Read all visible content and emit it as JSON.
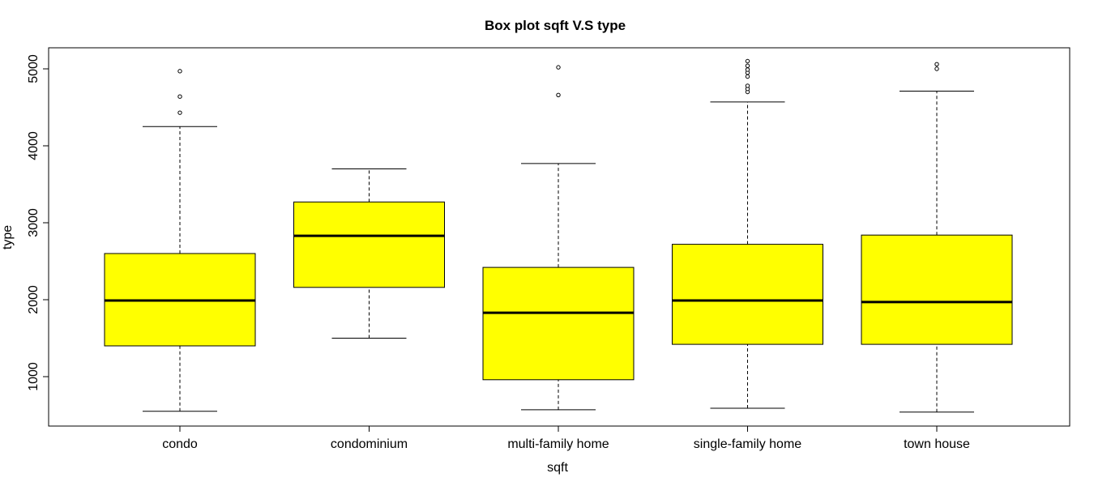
{
  "chart_data": {
    "type": "box",
    "title": "Box plot sqft V.S type",
    "xlabel": "sqft",
    "ylabel": "type",
    "ylim": [
      500,
      5200
    ],
    "yticks": [
      1000,
      2000,
      3000,
      4000,
      5000
    ],
    "grid": false,
    "legend": "none",
    "box_fill_color": "#ffff00",
    "categories": [
      "condo",
      "condominium",
      "multi-family home",
      "single-family home",
      "town house"
    ],
    "boxes": [
      {
        "category": "condo",
        "whisker_low": 550,
        "q1": 1400,
        "median": 1990,
        "q3": 2600,
        "whisker_high": 4250,
        "outliers": [
          4430,
          4640,
          4970
        ]
      },
      {
        "category": "condominium",
        "whisker_low": 1500,
        "q1": 2160,
        "median": 2830,
        "q3": 3270,
        "whisker_high": 3700,
        "outliers": []
      },
      {
        "category": "multi-family home",
        "whisker_low": 570,
        "q1": 960,
        "median": 1830,
        "q3": 2420,
        "whisker_high": 3770,
        "outliers": [
          4660,
          5020
        ]
      },
      {
        "category": "single-family home",
        "whisker_low": 590,
        "q1": 1420,
        "median": 1990,
        "q3": 2720,
        "whisker_high": 4570,
        "outliers": [
          4700,
          4740,
          4780,
          4900,
          4950,
          4990,
          5040,
          5100
        ]
      },
      {
        "category": "town house",
        "whisker_low": 540,
        "q1": 1420,
        "median": 1970,
        "q3": 2840,
        "whisker_high": 4710,
        "outliers": [
          5000,
          5060
        ]
      }
    ]
  }
}
